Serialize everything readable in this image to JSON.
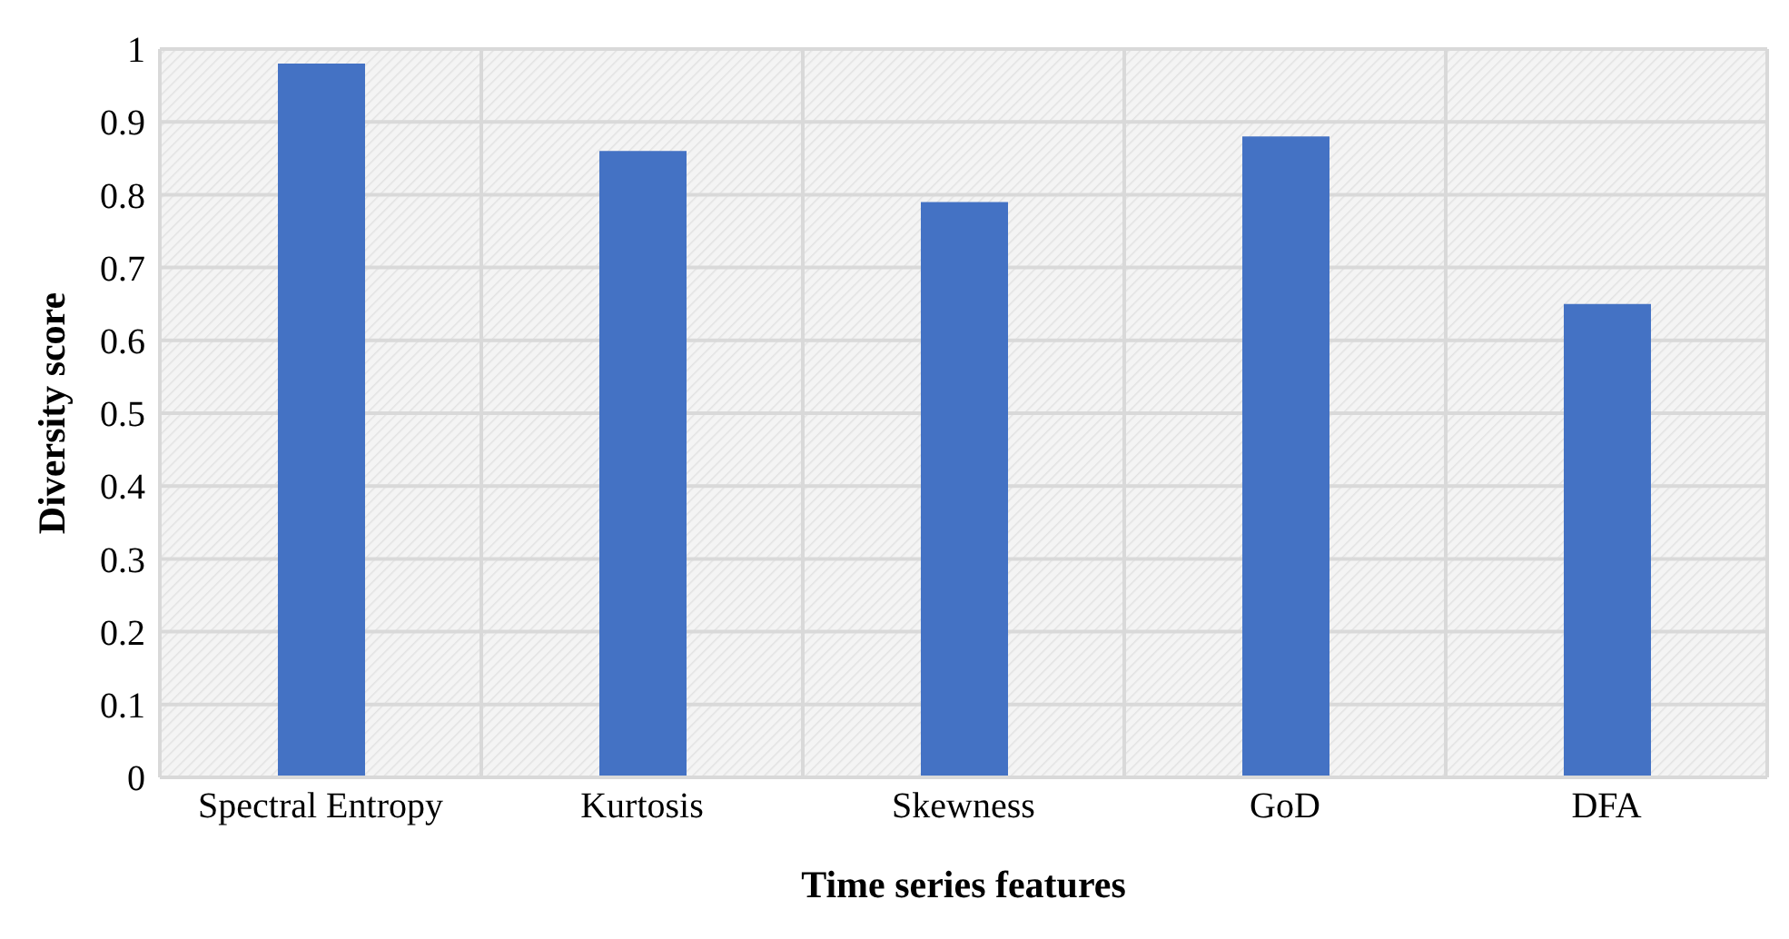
{
  "chart_data": {
    "type": "bar",
    "xlabel": "Time series features",
    "ylabel": "Diversity score",
    "categories": [
      "Spectral Entropy",
      "Kurtosis",
      "Skewness",
      "GoD",
      "DFA"
    ],
    "values": [
      0.98,
      0.86,
      0.79,
      0.88,
      0.65
    ],
    "color": "#4472c4",
    "ylim": [
      0,
      1
    ],
    "yticks": [
      0,
      0.1,
      0.2,
      0.3,
      0.4,
      0.5,
      0.6,
      0.7,
      0.8,
      0.9,
      1
    ],
    "grid": true
  }
}
